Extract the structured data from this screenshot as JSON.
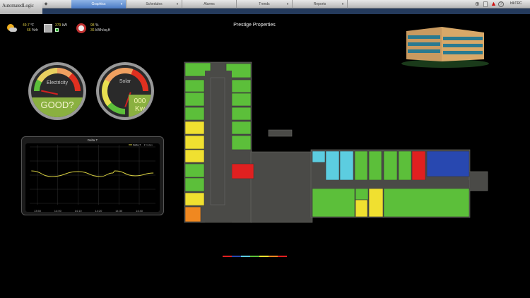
{
  "header": {
    "logo": "AutomatedLogic",
    "user": "blkTRC",
    "tabs": [
      {
        "label": "Graphics",
        "selected": true,
        "dropdown": true
      },
      {
        "label": "Schedules",
        "dropdown": true
      },
      {
        "label": "Alarms",
        "dropdown": false
      },
      {
        "label": "Trends",
        "dropdown": true
      },
      {
        "label": "Reports",
        "dropdown": true
      }
    ],
    "icons": [
      "globe-icon",
      "printer-icon",
      "alarm-warning-icon",
      "help-icon"
    ]
  },
  "title": "Prestige Properties",
  "stats": {
    "temp": "49.7",
    "temp_unit": "°F",
    "humidity": "66",
    "humidity_unit": "%rh",
    "power": "379",
    "power_unit": "kW",
    "efficiency": "98",
    "efficiency_unit": "%",
    "energy": "36",
    "energy_unit": "kWh/sq.ft"
  },
  "gauges": {
    "electricity": {
      "label": "Electricity",
      "value": "GOOD?"
    },
    "solar": {
      "label": "Solar",
      "value": "000",
      "unit": "Kw"
    }
  },
  "chart_data": {
    "type": "line",
    "title": "Delta T",
    "legend": [
      "Delta T",
      "Index"
    ],
    "legend_position": "top-right",
    "grid": true,
    "x_ticks": [
      "13:50",
      "14:00",
      "14:10",
      "14:20",
      "14:30",
      "14:40"
    ],
    "series": [
      {
        "name": "Delta T",
        "color": "#d8d040",
        "x": [
          "13:47",
          "13:57",
          "14:10",
          "14:21",
          "14:27",
          "14:28",
          "14:38",
          "14:47"
        ],
        "y": [
          2.3,
          1.9,
          2.25,
          1.9,
          2.15,
          2.3,
          1.95,
          2.15
        ]
      }
    ],
    "ylim": [
      0,
      4
    ]
  },
  "colors": {
    "good": "#5cbf3a",
    "warm": "#f0e030",
    "hot": "#e02020",
    "very_hot": "#f08820",
    "cool": "#5ccde0",
    "cold": "#2848b0",
    "structure": "#4a4a47"
  },
  "legend_colors": [
    "#e02020",
    "#2848b0",
    "#5ccde0",
    "#5cbf3a",
    "#f0e030",
    "#f08820",
    "#e02020"
  ]
}
